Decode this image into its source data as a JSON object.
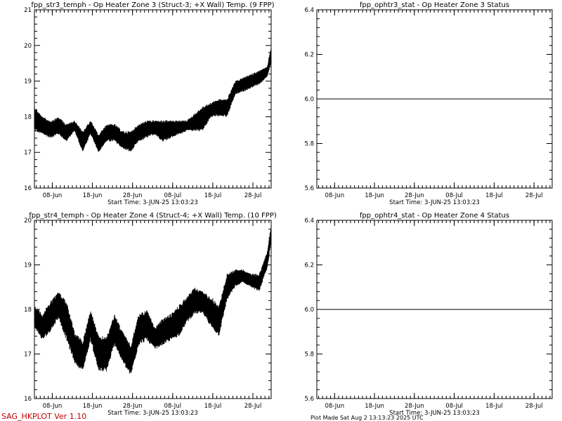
{
  "footer": {
    "program": "SAG_HKPLOT  Ver 1.10",
    "plot_made": "Plot Made Sat Aug  2 13:13:23 2025 UTC"
  },
  "chart_data": [
    {
      "type": "line",
      "title": "fpp_str3_temph - Op Heater Zone 3 (Struct-3; +X Wall) Temp. (9 FPP)",
      "start_time": "Start Time:  3-JUN-25  13:03:23",
      "ylim": [
        16,
        21
      ],
      "yticks": [
        "16",
        "17",
        "18",
        "19",
        "20",
        "21"
      ],
      "xticks": [
        "08-Jun",
        "18-Jun",
        "28-Jun",
        "08-Jul",
        "18-Jul",
        "28-Jul"
      ],
      "x_unit": "days since 3-Jun 13:03",
      "xlim": [
        0,
        59
      ],
      "envelope_x": [
        0,
        2,
        4,
        6,
        8,
        10,
        12,
        14,
        16,
        18,
        20,
        22,
        24,
        26,
        28,
        30,
        32,
        34,
        36,
        38,
        40,
        42,
        44,
        46,
        48,
        50,
        52,
        54,
        56,
        58,
        59
      ],
      "envelope_low": [
        17.6,
        17.5,
        17.4,
        17.5,
        17.3,
        17.6,
        17.0,
        17.5,
        17.0,
        17.3,
        17.3,
        17.1,
        17.0,
        17.3,
        17.4,
        17.5,
        17.3,
        17.4,
        17.5,
        17.6,
        17.6,
        17.6,
        18.0,
        18.0,
        18.0,
        18.6,
        18.7,
        18.8,
        18.9,
        19.1,
        19.5
      ],
      "envelope_high": [
        18.3,
        18.0,
        17.9,
        18.0,
        17.8,
        17.9,
        17.6,
        17.9,
        17.5,
        17.8,
        17.8,
        17.6,
        17.6,
        17.8,
        17.9,
        17.9,
        17.9,
        17.9,
        17.9,
        17.9,
        18.1,
        18.3,
        18.4,
        18.5,
        18.5,
        19.0,
        19.1,
        19.2,
        19.3,
        19.4,
        20.0
      ]
    },
    {
      "type": "line",
      "title": "fpp_ophtr3_stat - Op Heater Zone 3 Status",
      "start_time": "Start Time:  3-JUN-25  13:03:23",
      "ylim": [
        5.6,
        6.4
      ],
      "yticks": [
        "5.6",
        "5.8",
        "6.0",
        "6.2",
        "6.4"
      ],
      "xticks": [
        "08-Jun",
        "18-Jun",
        "28-Jun",
        "08-Jul",
        "18-Jul",
        "28-Jul"
      ],
      "x_unit": "days since 3-Jun 13:03",
      "xlim": [
        0,
        59
      ],
      "x": [
        0,
        59
      ],
      "y": [
        6.0,
        6.0
      ]
    },
    {
      "type": "line",
      "title": "fpp_str4_temph - Op Heater Zone 4 (Struct-4; +X Wall) Temp. (10 FPP)",
      "start_time": "Start Time:  3-JUN-25  13:03:23",
      "ylim": [
        16,
        20
      ],
      "yticks": [
        "16",
        "17",
        "18",
        "19",
        "20"
      ],
      "xticks": [
        "08-Jun",
        "18-Jun",
        "28-Jun",
        "08-Jul",
        "18-Jul",
        "28-Jul"
      ],
      "x_unit": "days since 3-Jun 13:03",
      "xlim": [
        0,
        59
      ],
      "envelope_x": [
        0,
        2,
        4,
        6,
        8,
        10,
        12,
        14,
        16,
        18,
        20,
        22,
        24,
        26,
        28,
        30,
        32,
        34,
        36,
        38,
        40,
        42,
        44,
        46,
        48,
        50,
        52,
        54,
        56,
        58,
        59
      ],
      "envelope_low": [
        17.6,
        17.3,
        17.5,
        17.8,
        17.3,
        16.8,
        16.6,
        17.3,
        16.6,
        16.6,
        17.2,
        16.8,
        16.5,
        17.2,
        17.3,
        17.1,
        17.2,
        17.3,
        17.4,
        17.7,
        17.9,
        17.9,
        17.6,
        17.4,
        18.2,
        18.5,
        18.6,
        18.5,
        18.4,
        18.9,
        19.5
      ],
      "envelope_high": [
        18.1,
        17.9,
        18.2,
        18.4,
        18.2,
        17.5,
        17.3,
        18.0,
        17.4,
        17.4,
        17.9,
        17.5,
        17.2,
        17.9,
        18.0,
        17.6,
        17.8,
        17.9,
        18.1,
        18.3,
        18.5,
        18.4,
        18.3,
        18.1,
        18.8,
        18.9,
        18.9,
        18.8,
        18.8,
        19.3,
        19.9
      ]
    },
    {
      "type": "line",
      "title": "fpp_ophtr4_stat - Op Heater Zone 4 Status",
      "start_time": "Start Time:  3-JUN-25  13:03:23",
      "ylim": [
        5.6,
        6.4
      ],
      "yticks": [
        "5.6",
        "5.8",
        "6.0",
        "6.2",
        "6.4"
      ],
      "xticks": [
        "08-Jun",
        "18-Jun",
        "28-Jun",
        "08-Jul",
        "18-Jul",
        "28-Jul"
      ],
      "x_unit": "days since 3-Jun 13:03",
      "xlim": [
        0,
        59
      ],
      "x": [
        0,
        59
      ],
      "y": [
        6.0,
        6.0
      ]
    }
  ]
}
